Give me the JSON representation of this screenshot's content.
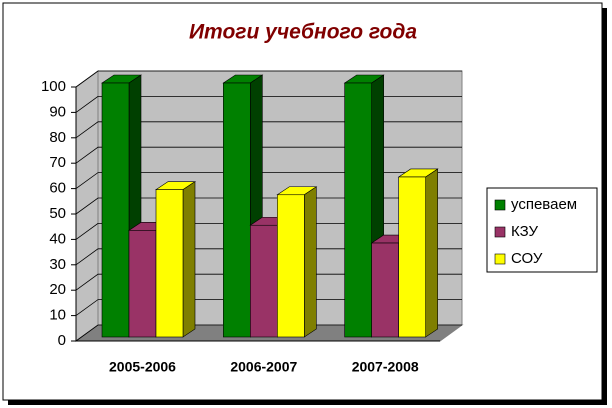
{
  "chart_data": {
    "type": "bar3d",
    "title": "Итоги учебного  года",
    "categories": [
      "2005-2006",
      "2006-2007",
      "2007-2008"
    ],
    "series": [
      {
        "name": "успеваем",
        "color": "#008000",
        "values": [
          100,
          100,
          100
        ]
      },
      {
        "name": "КЗУ",
        "color": "#993366",
        "values": [
          42,
          44,
          37
        ]
      },
      {
        "name": "СОУ",
        "color": "#ffff00",
        "values": [
          58,
          56,
          63
        ]
      }
    ],
    "ylim": [
      0,
      100
    ],
    "yticks": [
      0,
      10,
      20,
      30,
      40,
      50,
      60,
      70,
      80,
      90,
      100
    ],
    "grid": true,
    "legend": "right"
  }
}
